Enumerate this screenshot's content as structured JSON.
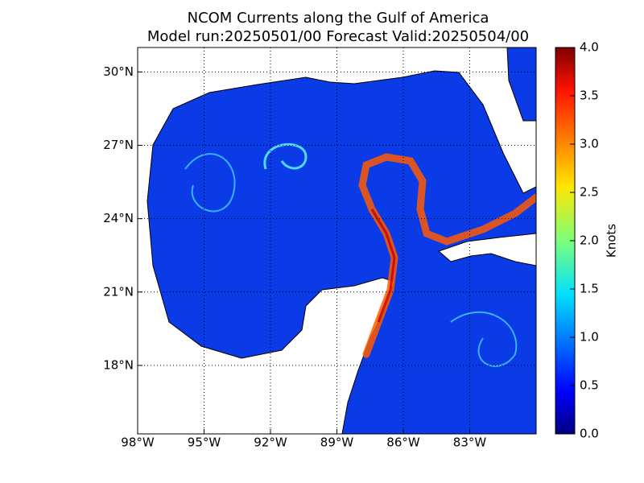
{
  "map": {
    "title": "NCOM Currents along the Gulf of America",
    "subtitle": "Model run:20250501/00 Forecast Valid:20250504/00",
    "lonlim": [
      -98,
      -80
    ],
    "latlim": [
      15.2,
      31
    ],
    "lon_ticks": [
      {
        "value": -98,
        "label": "98°W"
      },
      {
        "value": -95,
        "label": "95°W"
      },
      {
        "value": -92,
        "label": "92°W"
      },
      {
        "value": -89,
        "label": "89°W"
      },
      {
        "value": -86,
        "label": "86°W"
      },
      {
        "value": -83,
        "label": "83°W"
      }
    ],
    "lat_ticks": [
      {
        "value": 30,
        "label": "30°N"
      },
      {
        "value": 27,
        "label": "27°N"
      },
      {
        "value": 24,
        "label": "24°N"
      },
      {
        "value": 21,
        "label": "21°N"
      },
      {
        "value": 18,
        "label": "18°N"
      }
    ],
    "colorbar": {
      "label": "Knots",
      "lim": [
        0,
        4
      ],
      "ticks": [
        {
          "value": 0,
          "label": "0.0"
        },
        {
          "value": 0.5,
          "label": "0.5"
        },
        {
          "value": 1,
          "label": "1.0"
        },
        {
          "value": 1.5,
          "label": "1.5"
        },
        {
          "value": 2,
          "label": "2.0"
        },
        {
          "value": 2.5,
          "label": "2.5"
        },
        {
          "value": 3,
          "label": "3.0"
        },
        {
          "value": 3.5,
          "label": "3.5"
        },
        {
          "value": 4,
          "label": "4.0"
        }
      ]
    }
  }
}
